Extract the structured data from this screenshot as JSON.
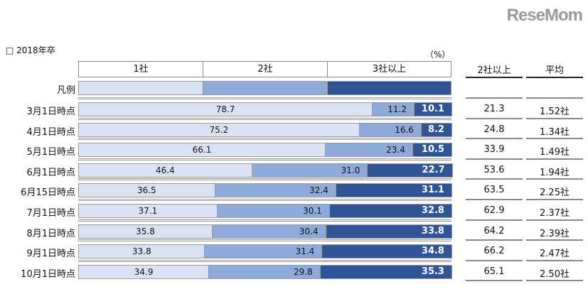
{
  "title": "□ 2018年卒",
  "unit": "（%）",
  "watermark": "ReseMom",
  "colors": {
    "one": "#d9e1f2",
    "two": "#8eaadb",
    "three": "#2f5597"
  },
  "chart_data": {
    "type": "bar",
    "stacked": true,
    "orientation": "horizontal",
    "legend_label": "凡例",
    "series_names": [
      "1社",
      "2社",
      "3社以上"
    ],
    "categories": [
      "3月1日時点",
      "4月1日時点",
      "5月1日時点",
      "6月1日時点",
      "6月15日時点",
      "7月1日時点",
      "8月1日時点",
      "9月1日時点",
      "10月1日時点"
    ],
    "series": [
      {
        "name": "1社",
        "values": [
          78.7,
          75.2,
          66.1,
          46.4,
          36.5,
          37.1,
          35.8,
          33.8,
          34.9
        ]
      },
      {
        "name": "2社",
        "values": [
          11.2,
          16.6,
          23.4,
          31.0,
          32.4,
          30.1,
          30.4,
          31.4,
          29.8
        ]
      },
      {
        "name": "3社以上",
        "values": [
          10.1,
          8.2,
          10.5,
          22.7,
          31.1,
          32.8,
          33.8,
          34.8,
          35.3
        ]
      }
    ],
    "xlim": [
      0,
      100
    ]
  },
  "side_table": {
    "headers": [
      "2社以上",
      "平均"
    ],
    "two_plus": [
      "21.3",
      "24.8",
      "33.9",
      "53.6",
      "63.5",
      "62.9",
      "64.2",
      "66.2",
      "65.1"
    ],
    "average": [
      "1.52社",
      "1.34社",
      "1.49社",
      "1.94社",
      "2.25社",
      "2.37社",
      "2.39社",
      "2.47社",
      "2.50社"
    ]
  }
}
